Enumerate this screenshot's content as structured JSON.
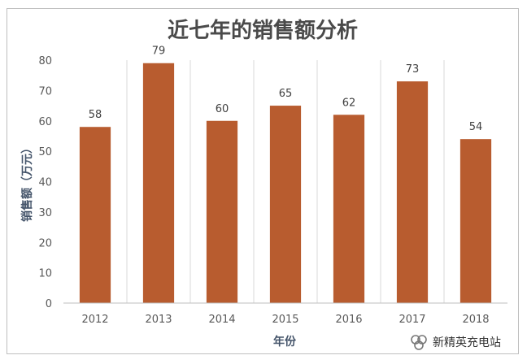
{
  "chart_data": {
    "type": "bar",
    "title": "近七年的销售额分析",
    "xlabel": "年份",
    "ylabel": "销售额（万元）",
    "categories": [
      "2012",
      "2013",
      "2014",
      "2015",
      "2016",
      "2017",
      "2018"
    ],
    "values": [
      58,
      79,
      60,
      65,
      62,
      73,
      54
    ],
    "data_labels": [
      "58",
      "79",
      "60",
      "65",
      "62",
      "73",
      "54"
    ],
    "ylim": [
      0,
      80
    ],
    "yticks": [
      "0",
      "10",
      "20",
      "30",
      "40",
      "50",
      "60",
      "70",
      "80"
    ],
    "grid": "vertical category separators",
    "legend": "none",
    "bar_color": "#b85c2f"
  },
  "watermark": {
    "text": "新精英充电站",
    "icon": "wechat-channel-icon"
  }
}
